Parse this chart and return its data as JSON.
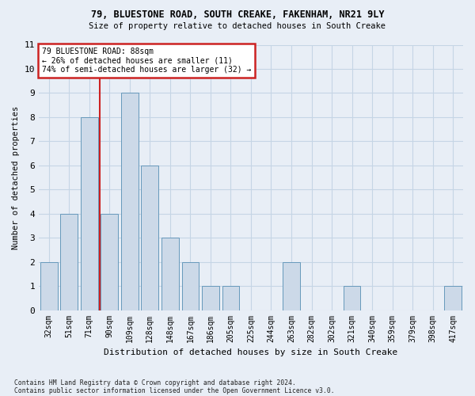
{
  "title1": "79, BLUESTONE ROAD, SOUTH CREAKE, FAKENHAM, NR21 9LY",
  "title2": "Size of property relative to detached houses in South Creake",
  "xlabel": "Distribution of detached houses by size in South Creake",
  "ylabel": "Number of detached properties",
  "footnote1": "Contains HM Land Registry data © Crown copyright and database right 2024.",
  "footnote2": "Contains public sector information licensed under the Open Government Licence v3.0.",
  "categories": [
    "32sqm",
    "51sqm",
    "71sqm",
    "90sqm",
    "109sqm",
    "128sqm",
    "148sqm",
    "167sqm",
    "186sqm",
    "205sqm",
    "225sqm",
    "244sqm",
    "263sqm",
    "282sqm",
    "302sqm",
    "321sqm",
    "340sqm",
    "359sqm",
    "379sqm",
    "398sqm",
    "417sqm"
  ],
  "values": [
    2,
    4,
    8,
    4,
    9,
    6,
    3,
    2,
    1,
    1,
    0,
    0,
    2,
    0,
    0,
    1,
    0,
    0,
    0,
    0,
    1
  ],
  "bar_color": "#ccd9e8",
  "bar_edge_color": "#6699bb",
  "grid_color": "#c5d5e5",
  "bg_color": "#e8eef6",
  "annotation_box_color": "#ffffff",
  "annotation_border_color": "#cc2222",
  "ref_line_color": "#cc2222",
  "ref_line_x": 2.5,
  "annotation_text_line1": "79 BLUESTONE ROAD: 88sqm",
  "annotation_text_line2": "← 26% of detached houses are smaller (11)",
  "annotation_text_line3": "74% of semi-detached houses are larger (32) →",
  "ylim": [
    0,
    11
  ],
  "yticks": [
    0,
    1,
    2,
    3,
    4,
    5,
    6,
    7,
    8,
    9,
    10,
    11
  ],
  "bar_width": 0.85
}
